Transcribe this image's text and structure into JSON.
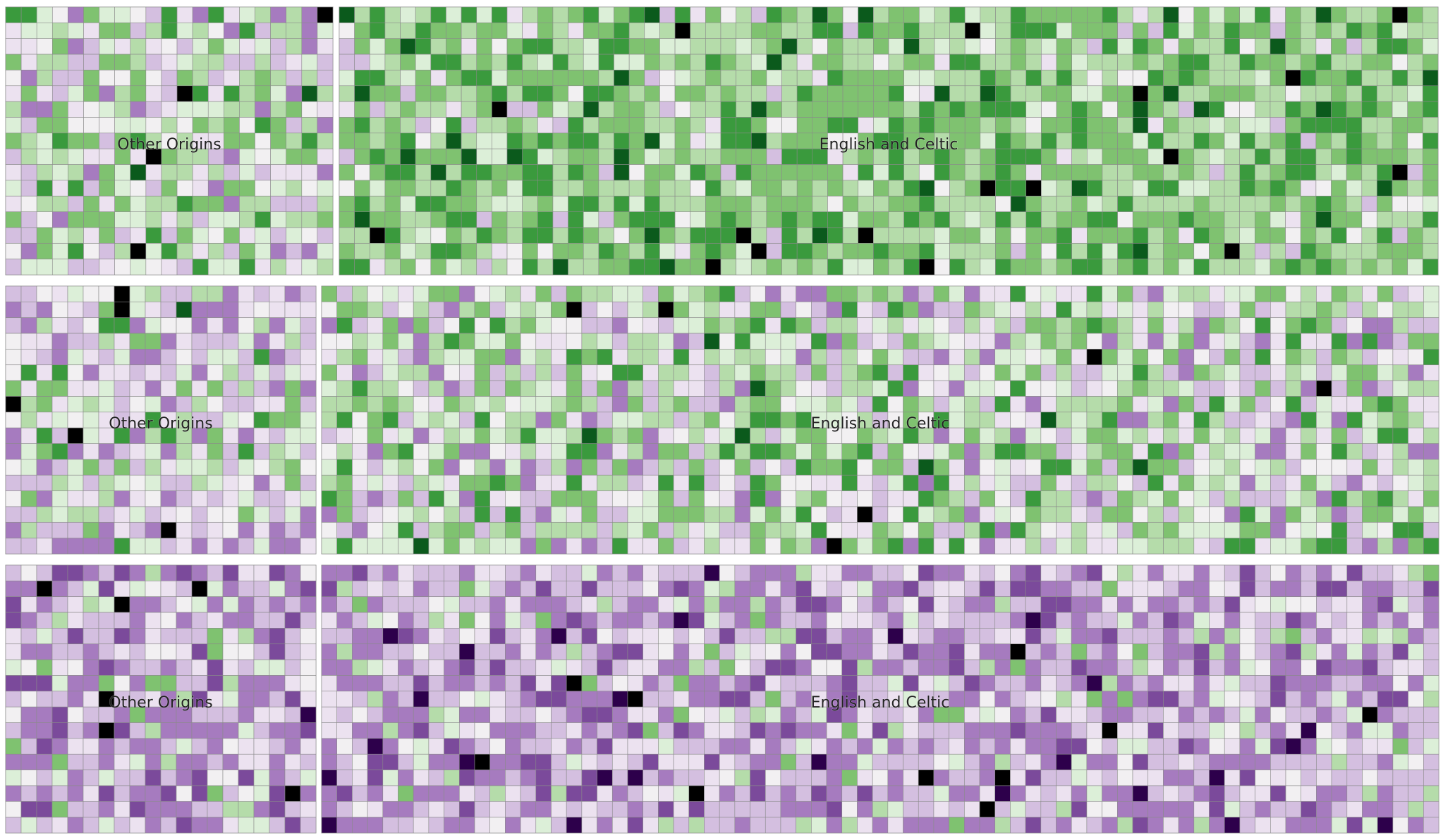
{
  "chart_data": {
    "type": "heatmap",
    "description_free": true,
    "rows": [
      {
        "panels": [
          {
            "label": "Other Origins",
            "tone": "mixed"
          },
          {
            "label": "English and Celtic",
            "tone": "green"
          }
        ]
      },
      {
        "panels": [
          {
            "label": "Other Origins",
            "tone": "purple-light"
          },
          {
            "label": "English and Celtic",
            "tone": "mixed"
          }
        ]
      },
      {
        "panels": [
          {
            "label": "Other Origins",
            "tone": "purple"
          },
          {
            "label": "English and Celtic",
            "tone": "purple"
          }
        ]
      }
    ],
    "palette": {
      "purple_dark": "#2d004b",
      "purple": "#7b4a9b",
      "purple_mid": "#a67bbf",
      "purple_light": "#d4bfe0",
      "purple_pale": "#ece2f0",
      "neutral": "#f2f0f2",
      "green_pale": "#dcefd8",
      "green_light": "#b5dcaa",
      "green_mid": "#7fc270",
      "green": "#3a9a3d",
      "green_dark": "#0b5a1c",
      "black": "#000000"
    },
    "cell_border": "#8a8a8a"
  }
}
